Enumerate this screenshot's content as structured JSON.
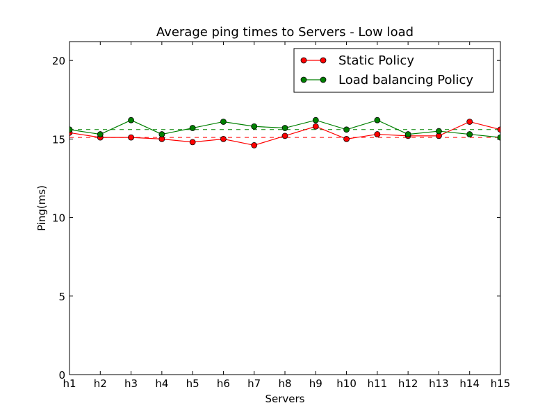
{
  "chart_data": {
    "type": "line",
    "title": "Average ping times to Servers - Low load",
    "xlabel": "Servers",
    "ylabel": "Ping(ms)",
    "categories": [
      "h1",
      "h2",
      "h3",
      "h4",
      "h5",
      "h6",
      "h7",
      "h8",
      "h9",
      "h10",
      "h11",
      "h12",
      "h13",
      "h14",
      "h15"
    ],
    "ylim": [
      0,
      21.2
    ],
    "yticks": [
      0,
      5,
      10,
      15,
      20
    ],
    "grid": false,
    "legend_position": "top-right",
    "series": [
      {
        "name": "Static Policy",
        "color": "#ff0000",
        "values": [
          15.4,
          15.1,
          15.1,
          15.0,
          14.8,
          15.0,
          14.6,
          15.2,
          15.8,
          15.0,
          15.3,
          15.2,
          15.2,
          16.1,
          15.6
        ],
        "mean": 15.1
      },
      {
        "name": "Load balancing Policy",
        "color": "#008000",
        "values": [
          15.6,
          15.3,
          16.2,
          15.3,
          15.7,
          16.1,
          15.8,
          15.7,
          16.2,
          15.6,
          16.2,
          15.3,
          15.5,
          15.3,
          15.1
        ],
        "mean": 15.6
      }
    ]
  }
}
